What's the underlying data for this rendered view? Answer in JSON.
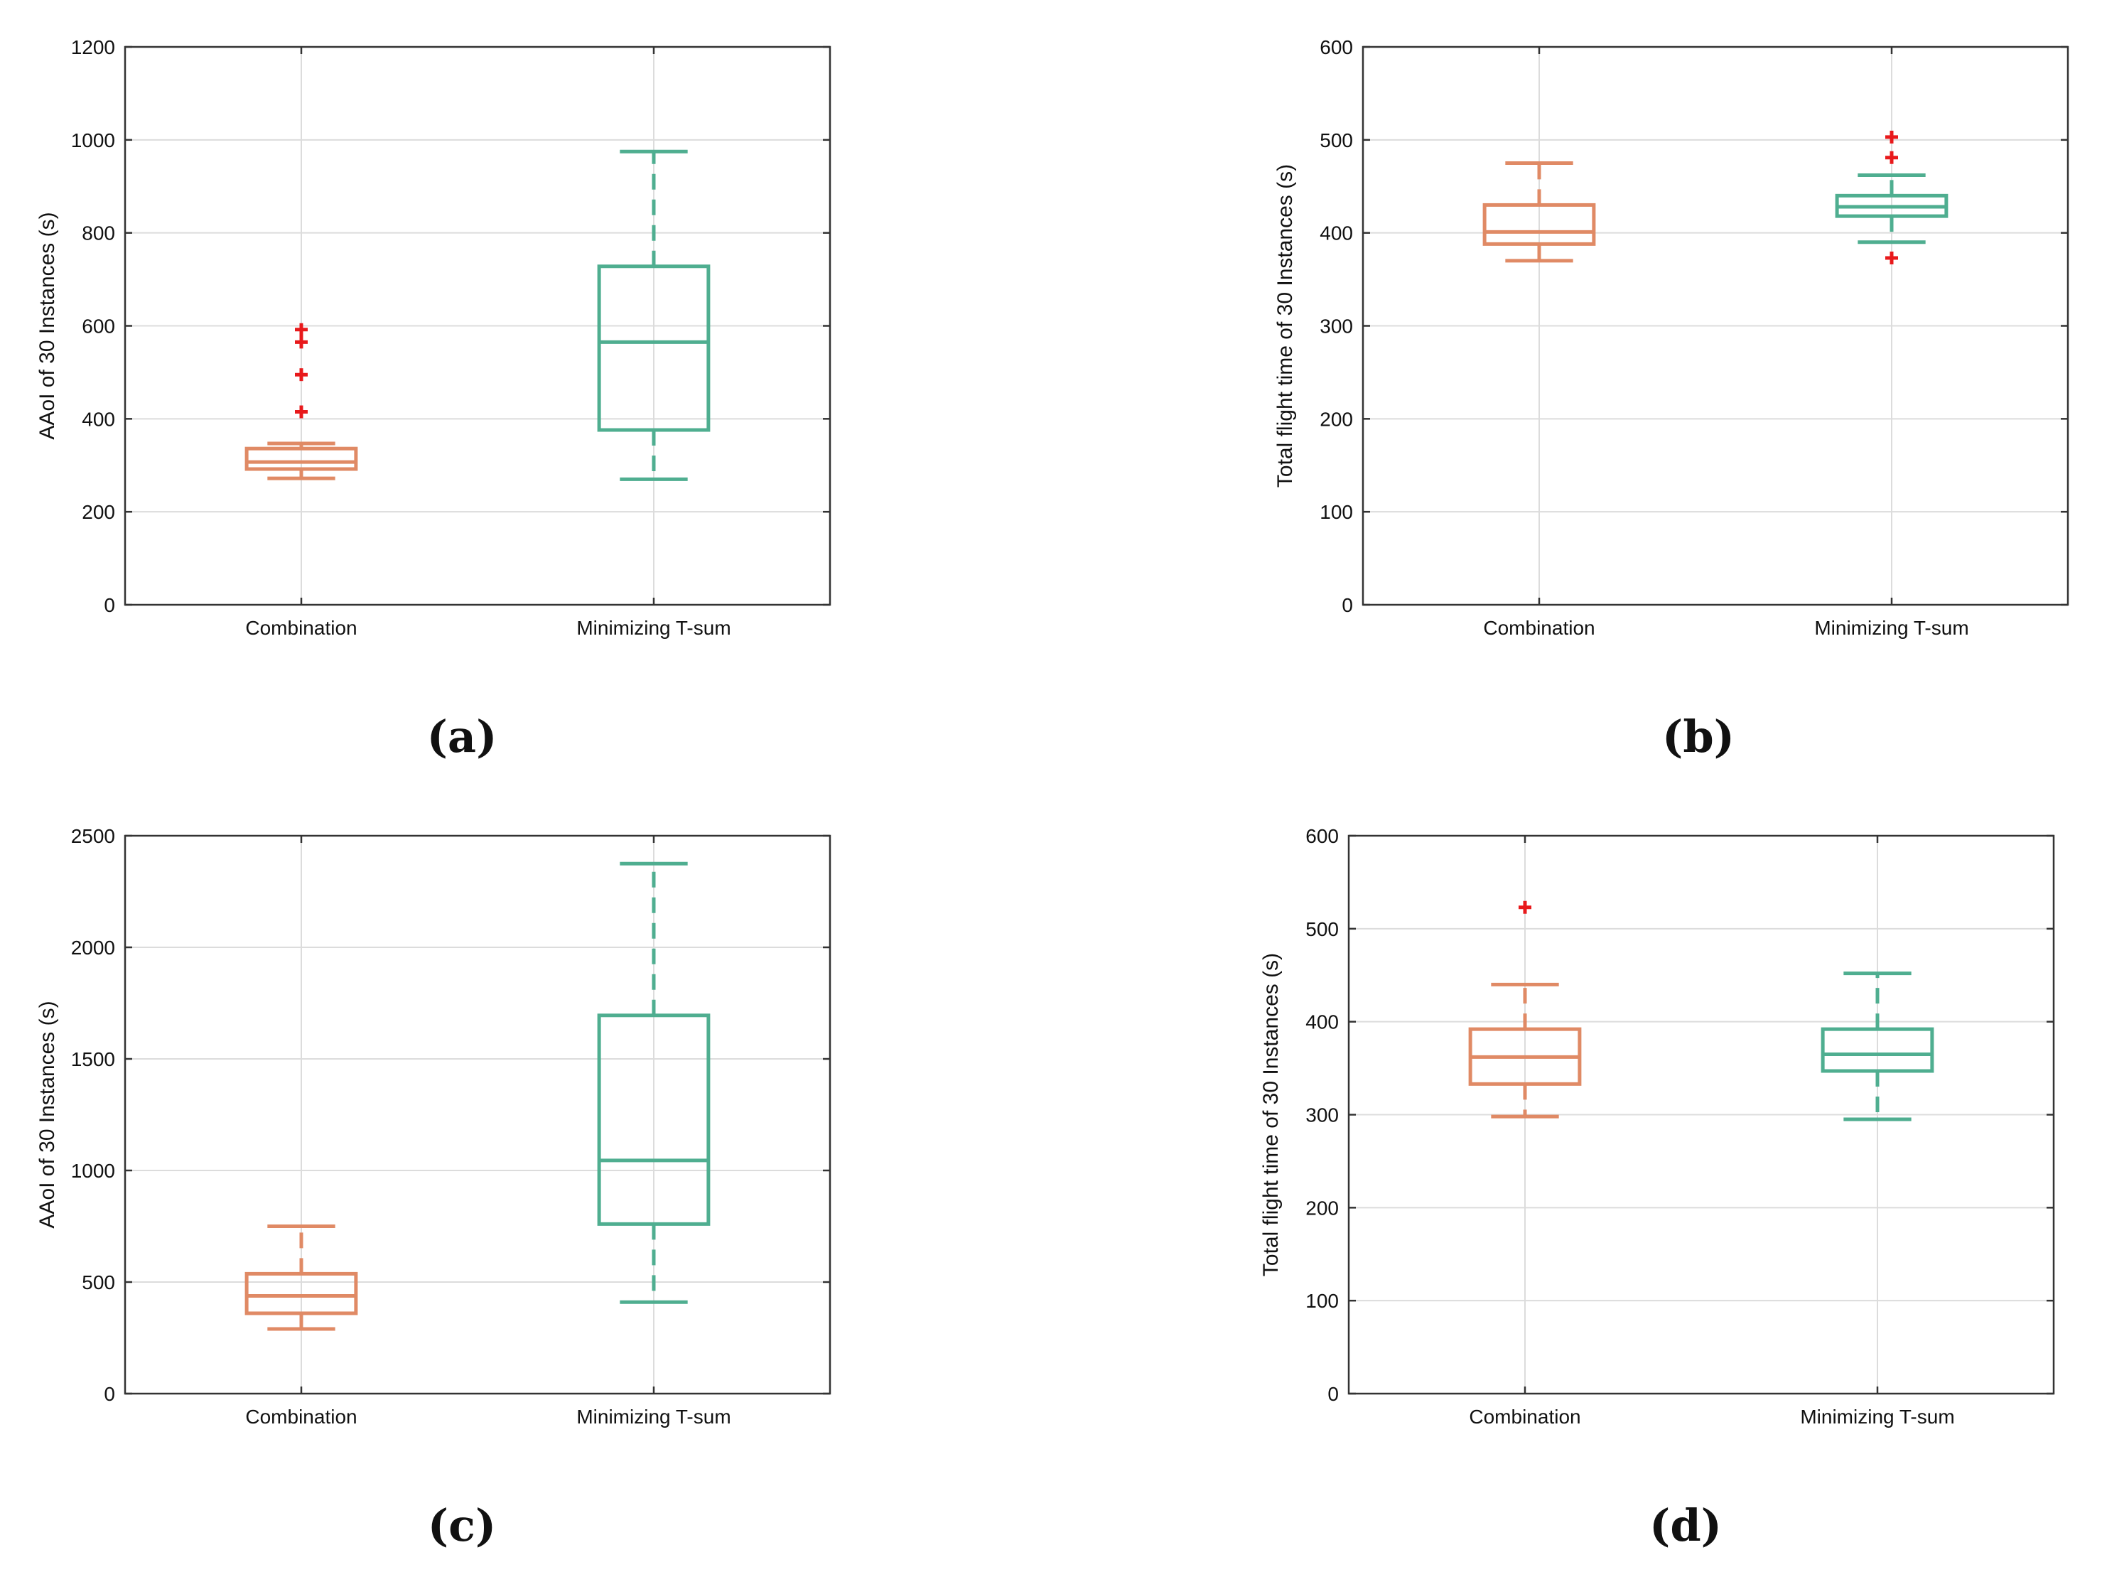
{
  "colors": {
    "combination": "#E08A65",
    "minimizing": "#4FAE90",
    "outlier": "#E8191B",
    "grid": "#dcdcdc",
    "axis": "#333333"
  },
  "chart_data": [
    {
      "panel": "(a)",
      "type": "box",
      "categories": [
        "Combination",
        "Minimizing T-sum"
      ],
      "ylabel": "AAoI of 30 Instances (s)",
      "xlabel": "",
      "ylim": [
        0,
        1200
      ],
      "yticks": [
        0,
        200,
        400,
        600,
        800,
        1000,
        1200
      ],
      "grid": true,
      "boxes": [
        {
          "name": "Combination",
          "whisker_low": 272,
          "q1": 292,
          "median": 307,
          "q3": 336,
          "whisker_high": 347,
          "outliers": [
            415,
            495,
            565,
            592
          ]
        },
        {
          "name": "Minimizing T-sum",
          "whisker_low": 270,
          "q1": 376,
          "median": 565,
          "q3": 728,
          "whisker_high": 975,
          "outliers": []
        }
      ]
    },
    {
      "panel": "(b)",
      "type": "box",
      "categories": [
        "Combination",
        "Minimizing T-sum"
      ],
      "ylabel": "Total flight time of 30 Instances (s)",
      "xlabel": "",
      "ylim": [
        0,
        600
      ],
      "yticks": [
        0,
        100,
        200,
        300,
        400,
        500,
        600
      ],
      "grid": true,
      "boxes": [
        {
          "name": "Combination",
          "whisker_low": 370,
          "q1": 388,
          "median": 401,
          "q3": 430,
          "whisker_high": 475,
          "outliers": []
        },
        {
          "name": "Minimizing T-sum",
          "whisker_low": 390,
          "q1": 418,
          "median": 428,
          "q3": 440,
          "whisker_high": 462,
          "outliers": [
            373,
            481,
            503
          ]
        }
      ]
    },
    {
      "panel": "(c)",
      "type": "box",
      "categories": [
        "Combination",
        "Minimizing T-sum"
      ],
      "ylabel": "AAoI of 30 Instances (s)",
      "xlabel": "",
      "ylim": [
        0,
        2500
      ],
      "yticks": [
        0,
        500,
        1000,
        1500,
        2000,
        2500
      ],
      "grid": true,
      "boxes": [
        {
          "name": "Combination",
          "whisker_low": 290,
          "q1": 360,
          "median": 438,
          "q3": 537,
          "whisker_high": 750,
          "outliers": []
        },
        {
          "name": "Minimizing T-sum",
          "whisker_low": 410,
          "q1": 760,
          "median": 1045,
          "q3": 1695,
          "whisker_high": 2375,
          "outliers": []
        }
      ]
    },
    {
      "panel": "(d)",
      "type": "box",
      "categories": [
        "Combination",
        "Minimizing T-sum"
      ],
      "ylabel": "Total flight time of 30 Instances (s)",
      "xlabel": "",
      "ylim": [
        0,
        600
      ],
      "yticks": [
        0,
        100,
        200,
        300,
        400,
        500,
        600
      ],
      "grid": true,
      "boxes": [
        {
          "name": "Combination",
          "whisker_low": 298,
          "q1": 333,
          "median": 362,
          "q3": 392,
          "whisker_high": 440,
          "outliers": [
            523
          ]
        },
        {
          "name": "Minimizing T-sum",
          "whisker_low": 295,
          "q1": 347,
          "median": 365,
          "q3": 392,
          "whisker_high": 452,
          "outliers": []
        }
      ]
    }
  ]
}
